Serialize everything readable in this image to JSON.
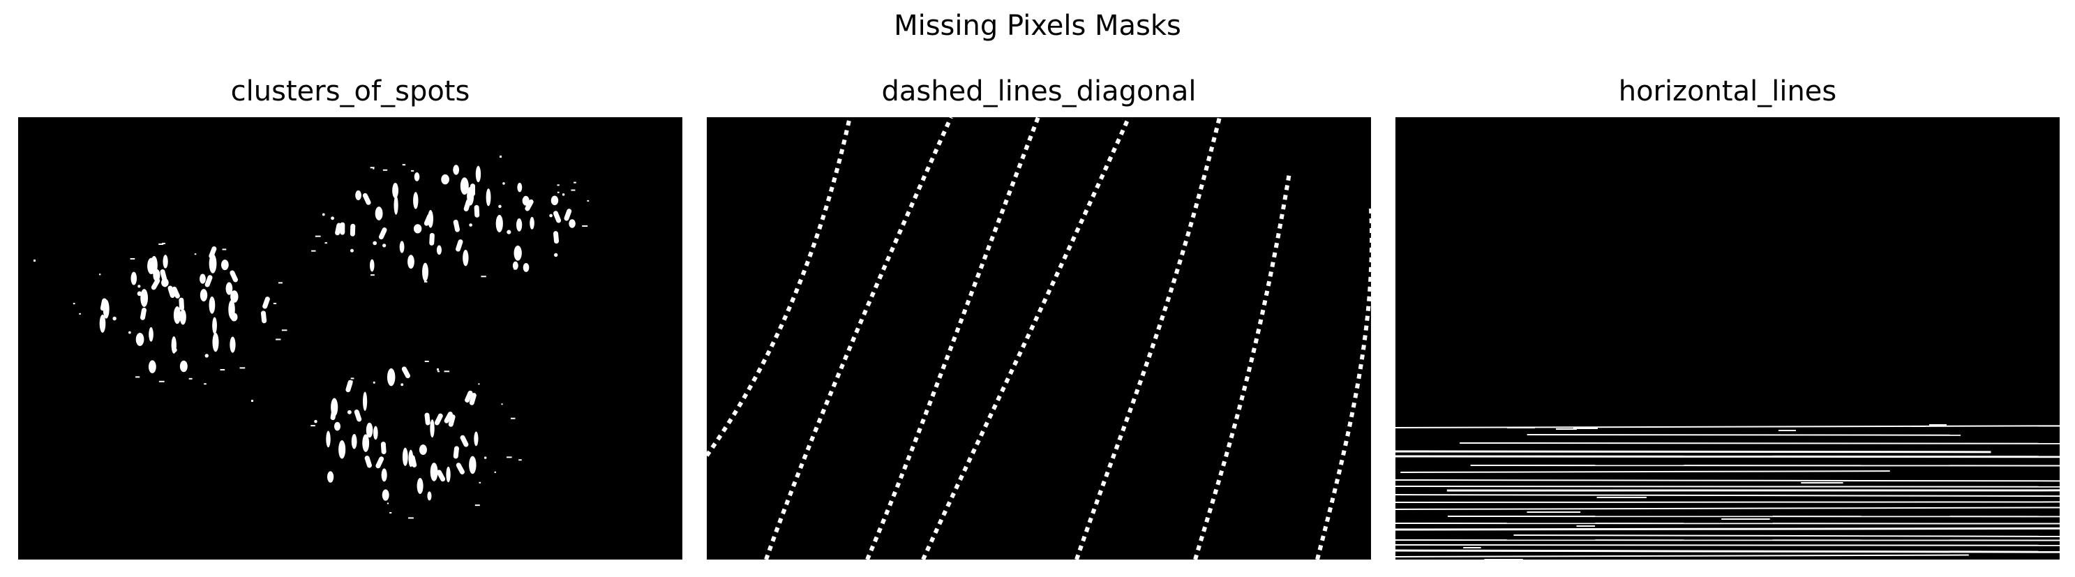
{
  "figure": {
    "title": "Missing Pixels Masks"
  },
  "panels": [
    {
      "title": "clusters_of_spots"
    },
    {
      "title": "dashed_lines_diagonal"
    },
    {
      "title": "horizontal_lines"
    }
  ],
  "colors": {
    "background": "#000000",
    "mask": "#ffffff",
    "page": "#ffffff"
  }
}
